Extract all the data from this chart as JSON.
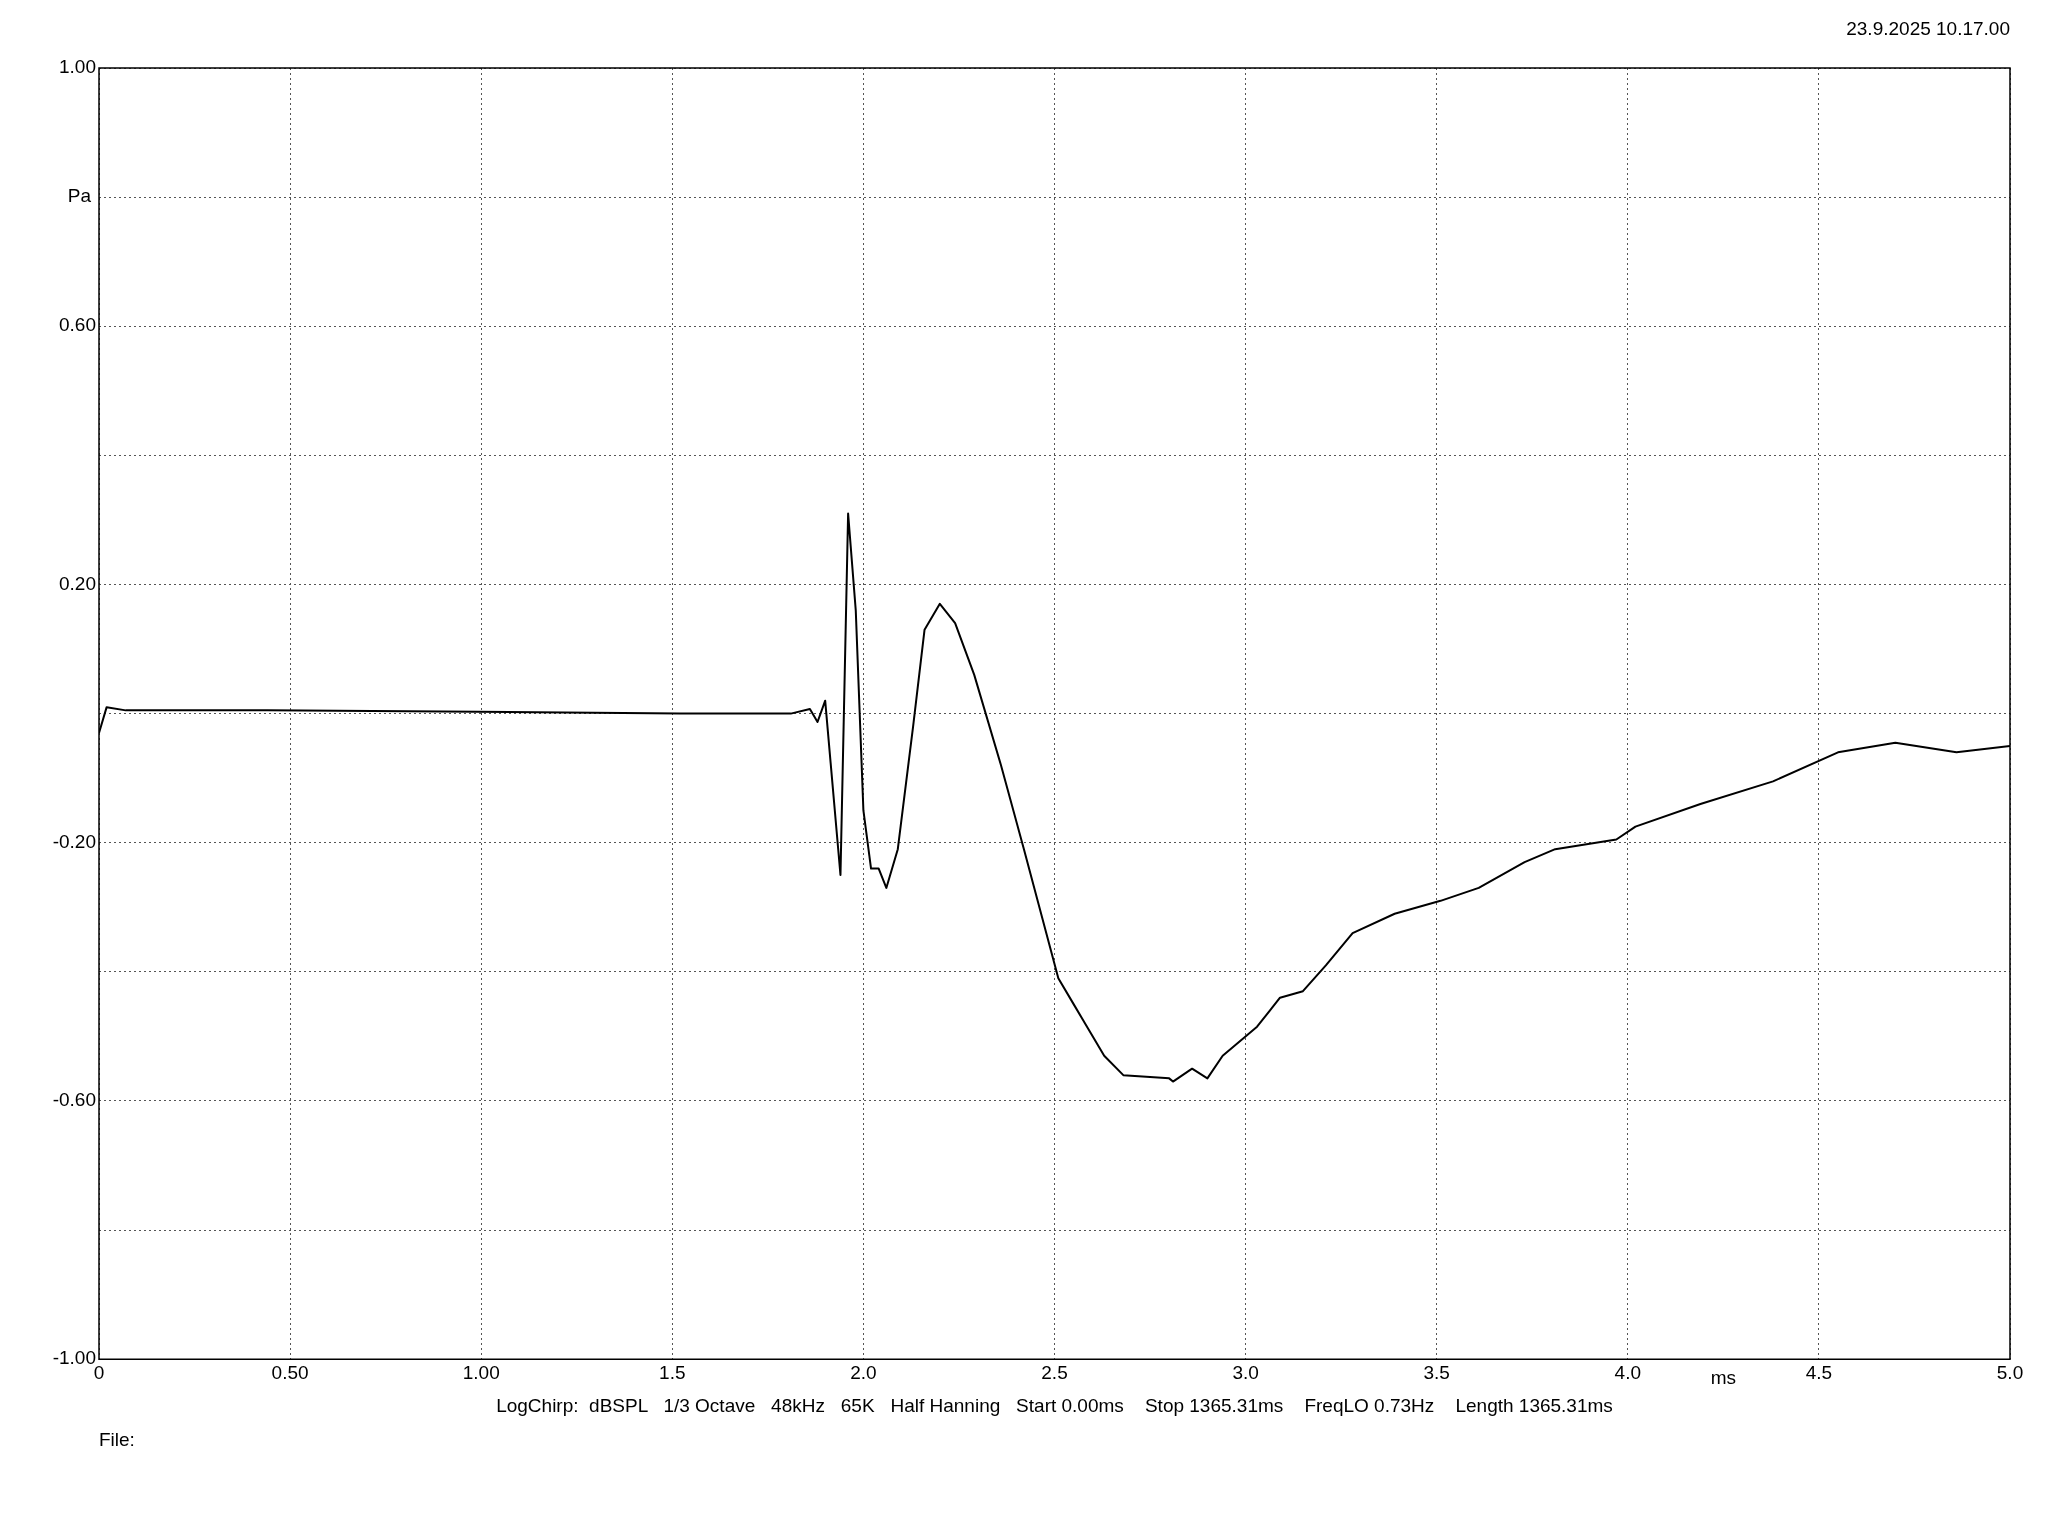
{
  "chart_data": {
    "type": "line",
    "xlabel": "ms",
    "ylabel": "Pa",
    "annotations": [
      "23.9.2025 10.17.00",
      "LogChirp:  dBSPL   1/3 Octave   48kHz   65K   Half Hanning   Start 0.00ms    Stop 1365.31ms    FreqLO 0.73Hz    Length 1365.31ms",
      "File:"
    ],
    "series": [
      {
        "color": "#000000",
        "x": [
          0,
          0.02,
          0.07,
          0.44,
          0.99,
          1.52,
          1.81,
          1.86,
          1.88,
          1.9,
          1.94,
          1.96,
          1.98,
          2.0,
          2.02,
          2.04,
          2.06,
          2.09,
          2.13,
          2.16,
          2.2,
          2.24,
          2.29,
          2.36,
          2.42,
          2.51,
          2.55,
          2.58,
          2.63,
          2.68,
          2.8,
          2.81,
          2.86,
          2.9,
          2.94,
          3.03,
          3.09,
          3.15,
          3.21,
          3.28,
          3.39,
          3.51,
          3.61,
          3.73,
          3.81,
          3.97,
          4.02,
          4.19,
          4.38,
          4.55,
          4.7,
          4.86,
          5.0
        ],
        "values": [
          -0.03,
          0.01,
          0.005,
          0.005,
          0.003,
          0,
          0,
          0.007,
          -0.013,
          0.02,
          -0.25,
          0.31,
          0.16,
          -0.15,
          -0.24,
          -0.24,
          -0.27,
          -0.21,
          -0.02,
          0.13,
          0.17,
          0.14,
          0.06,
          -0.08,
          -0.21,
          -0.41,
          -0.45,
          -0.48,
          -0.53,
          -0.56,
          -0.565,
          -0.57,
          -0.55,
          -0.565,
          -0.53,
          -0.485,
          -0.44,
          -0.43,
          -0.39,
          -0.34,
          -0.31,
          -0.29,
          -0.27,
          -0.23,
          -0.21,
          -0.195,
          -0.175,
          -0.14,
          -0.105,
          -0.06,
          -0.045,
          -0.06,
          -0.05
        ]
      }
    ],
    "xlim": [
      0,
      5
    ],
    "xticks": [
      0,
      {
        "value": 0.5,
        "label": "0.50"
      },
      {
        "value": 1,
        "label": "1.00"
      },
      1.5,
      {
        "value": 2,
        "label": "2.0"
      },
      2.5,
      {
        "value": 3,
        "label": "3.0"
      },
      3.5,
      {
        "value": 4,
        "label": "4.0"
      },
      4.5,
      {
        "value": 5,
        "label": "5.0"
      }
    ],
    "ylim": [
      -1,
      1
    ],
    "yticks": [
      {
        "value": -1,
        "label": "-1.00"
      },
      {
        "value": -0.8,
        "label": null
      },
      {
        "value": -0.6,
        "label": "-0.60"
      },
      {
        "value": -0.4,
        "label": null
      },
      {
        "value": -0.2,
        "label": "-0.20"
      },
      {
        "value": 0,
        "label": null
      },
      {
        "value": 0.2,
        "label": "0.20"
      },
      {
        "value": 0.4,
        "label": null
      },
      {
        "value": 0.6,
        "label": "0.60"
      },
      {
        "value": 0.8,
        "label": null
      },
      {
        "value": 1,
        "label": "1.00"
      }
    ],
    "grid": true,
    "legend": false,
    "marker": "none",
    "line_style": "solid"
  }
}
